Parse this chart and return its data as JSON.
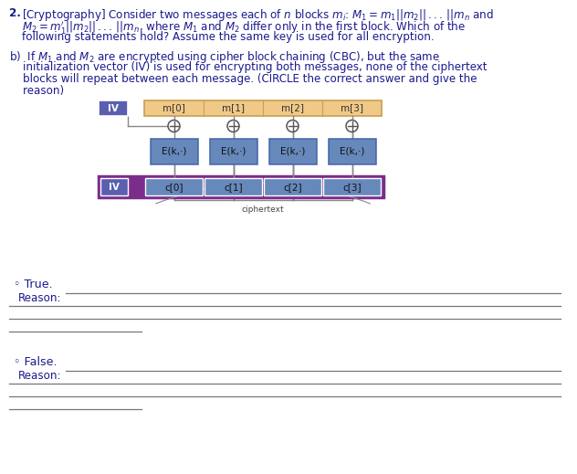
{
  "iv_box_color": "#5b5faf",
  "msg_box_color": "#f0c888",
  "msg_box_border": "#c8a050",
  "enc_box_color": "#6688bb",
  "cipher_box_color": "#6688bb",
  "cipher_bg_color": "#7b2d8b",
  "labels_m": [
    "m[0]",
    "m[1]",
    "m[2]",
    "m[3]"
  ],
  "labels_c": [
    "c[0]",
    "c[1]",
    "c[2]",
    "c[3]"
  ],
  "label_enc": "E(k,·)",
  "label_iv": "IV",
  "label_ciphertext": "ciphertext",
  "bg_color": "white",
  "text_color": "#1a1a8c",
  "answer_line_color": "#777777",
  "figsize": [
    6.32,
    5.19
  ],
  "dpi": 100
}
